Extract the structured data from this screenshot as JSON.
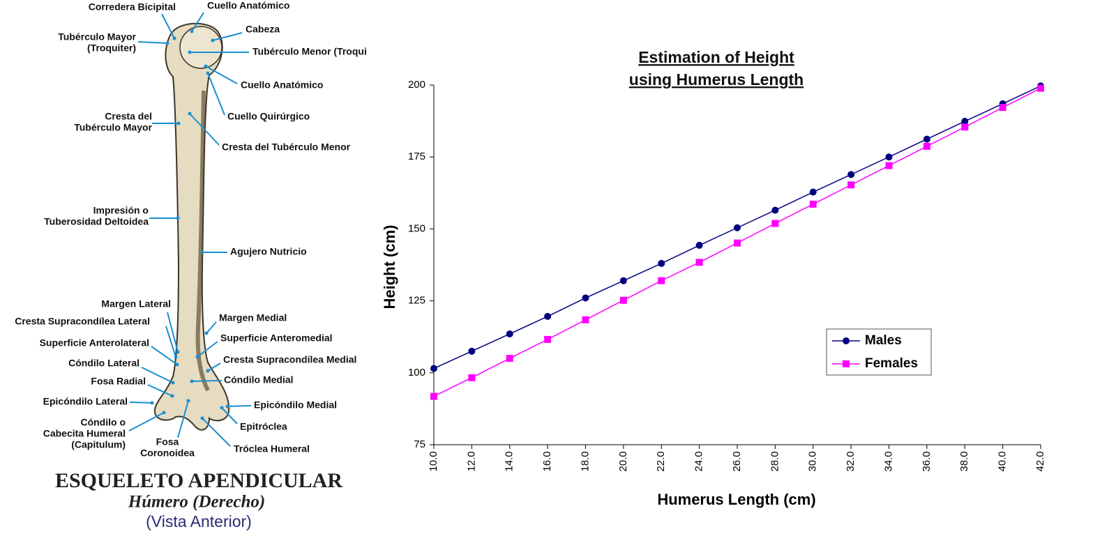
{
  "diagram": {
    "labels": [
      {
        "lines": [
          "Corredera Bicipital"
        ]
      },
      {
        "lines": [
          "Cuello Anatómico"
        ]
      },
      {
        "lines": [
          "Cabeza"
        ]
      },
      {
        "lines": [
          "Tubérculo Mayor",
          "(Troquiter)"
        ]
      },
      {
        "lines": [
          "Tubérculo Menor (Troqui"
        ]
      },
      {
        "lines": [
          "Cuello Anatómico"
        ]
      },
      {
        "lines": [
          "Cuello Quirúrgico"
        ]
      },
      {
        "lines": [
          "Cresta del",
          "Tubérculo Mayor"
        ]
      },
      {
        "lines": [
          "Cresta del Tubérculo Menor"
        ]
      },
      {
        "lines": [
          "Impresión o",
          "Tuberosidad Deltoidea"
        ]
      },
      {
        "lines": [
          "Agujero Nutricio"
        ]
      },
      {
        "lines": [
          "Margen Lateral"
        ]
      },
      {
        "lines": [
          "Margen Medial"
        ]
      },
      {
        "lines": [
          "Cresta Supracondílea Lateral"
        ]
      },
      {
        "lines": [
          "Superficie Anterolateral"
        ]
      },
      {
        "lines": [
          "Superficie Anteromedial"
        ]
      },
      {
        "lines": [
          "Cóndilo Lateral"
        ]
      },
      {
        "lines": [
          "Cresta Supracondílea Medial"
        ]
      },
      {
        "lines": [
          "Fosa Radial"
        ]
      },
      {
        "lines": [
          "Cóndilo Medial"
        ]
      },
      {
        "lines": [
          "Epicóndilo Lateral"
        ]
      },
      {
        "lines": [
          "Epicóndilo Medial"
        ]
      },
      {
        "lines": [
          "Cóndilo o",
          "Cabecita Humeral",
          "(Capitulum)"
        ]
      },
      {
        "lines": [
          "Epitróclea"
        ]
      },
      {
        "lines": [
          "Fosa",
          "Coronoidea"
        ]
      },
      {
        "lines": [
          "Tróclea Humeral"
        ]
      }
    ],
    "title": "ESQUELETO APENDICULAR",
    "subtitle": "Húmero (Derecho)",
    "caption": "(Vista Anterior)"
  },
  "chart_data": {
    "type": "line",
    "title": [
      "Estimation of Height",
      "using Humerus Length"
    ],
    "x_label": "Humerus Length (cm)",
    "y_label": "Height (cm)",
    "x": [
      10,
      12,
      14,
      16,
      18,
      20,
      22,
      24,
      26,
      28,
      30,
      32,
      34,
      36,
      38,
      40,
      42
    ],
    "series": [
      {
        "name": "Males",
        "color": "#000080",
        "marker": "circle",
        "values": [
          101.5,
          107.5,
          113.5,
          119.6,
          126,
          132,
          138,
          144.3,
          150.4,
          156.5,
          162.8,
          168.9,
          175,
          181.2,
          187.4,
          193.5,
          199.7
        ]
      },
      {
        "name": "Females",
        "color": "#ff00ff",
        "marker": "square",
        "values": [
          91.8,
          98.3,
          105,
          111.6,
          118.4,
          125.2,
          132,
          138.4,
          145.1,
          151.9,
          158.6,
          165.3,
          172,
          178.7,
          185.4,
          192.2,
          198.9
        ]
      }
    ],
    "xlim": [
      10,
      42
    ],
    "xticks": [
      {
        "value": 10,
        "label": "10.0"
      },
      {
        "value": 12,
        "label": "12.0"
      },
      {
        "value": 14,
        "label": "14.0"
      },
      {
        "value": 16,
        "label": "16.0"
      },
      {
        "value": 18,
        "label": "18.0"
      },
      {
        "value": 20,
        "label": "20.0"
      },
      {
        "value": 22,
        "label": "22.0"
      },
      {
        "value": 24,
        "label": "24.0"
      },
      {
        "value": 26,
        "label": "26.0"
      },
      {
        "value": 28,
        "label": "28.0"
      },
      {
        "value": 30,
        "label": "30.0"
      },
      {
        "value": 32,
        "label": "32.0"
      },
      {
        "value": 34,
        "label": "34.0"
      },
      {
        "value": 36,
        "label": "36.0"
      },
      {
        "value": 38,
        "label": "38.0"
      },
      {
        "value": 40,
        "label": "40.0"
      },
      {
        "value": 42,
        "label": "42.0"
      }
    ],
    "ylim": [
      75,
      200
    ],
    "yticks": [
      75,
      100,
      125,
      150,
      175,
      200
    ],
    "grid": false,
    "legend": "center-right"
  }
}
